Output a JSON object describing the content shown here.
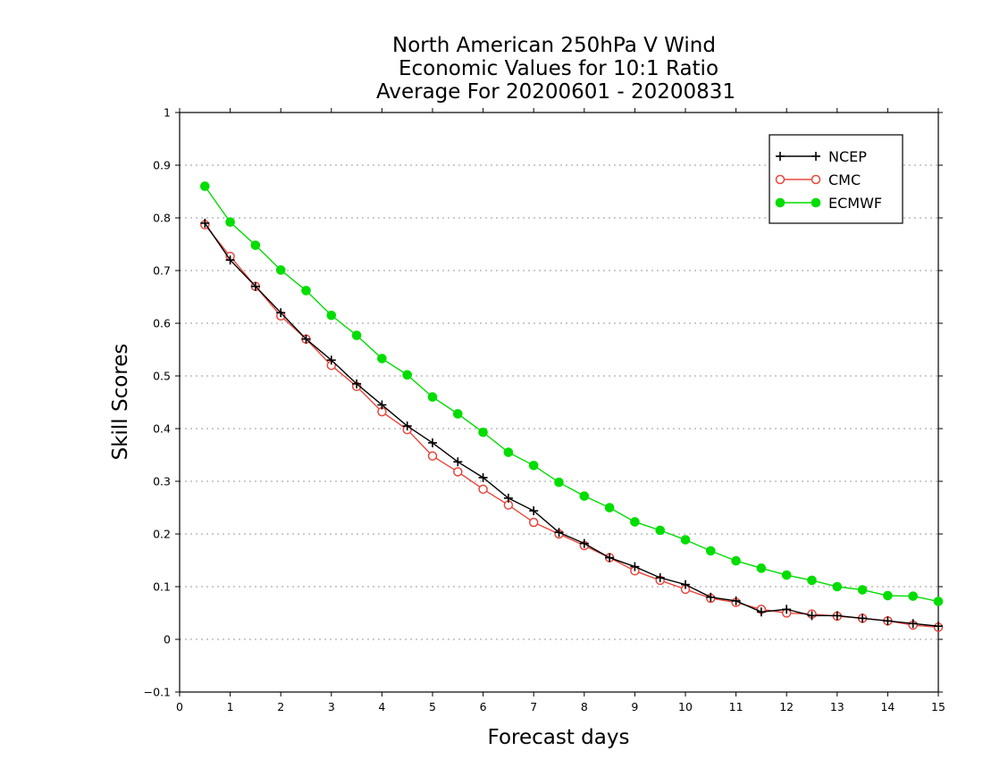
{
  "chart_data": {
    "type": "line",
    "title": [
      "North American 250hPa V Wind",
      "Economic Values for 10:1 Ratio",
      "Average For 20200601 - 20200831"
    ],
    "xlabel": "Forecast days",
    "ylabel": "Skill Scores",
    "xlim": [
      0,
      15
    ],
    "ylim": [
      -0.1,
      1
    ],
    "xticks": [
      0,
      1,
      2,
      3,
      4,
      5,
      6,
      7,
      8,
      9,
      10,
      11,
      12,
      13,
      14,
      15
    ],
    "yticks": [
      -0.1,
      0,
      0.1,
      0.2,
      0.3,
      0.4,
      0.5,
      0.6,
      0.7,
      0.8,
      0.9,
      1
    ],
    "ytick_labels": [
      "−0.1",
      "0",
      "0.1",
      "0.2",
      "0.3",
      "0.4",
      "0.5",
      "0.6",
      "0.7",
      "0.8",
      "0.9",
      "1"
    ],
    "grid": true,
    "legend_position": "top-right",
    "x": [
      0.5,
      1,
      1.5,
      2,
      2.5,
      3,
      3.5,
      4,
      4.5,
      5,
      5.5,
      6,
      6.5,
      7,
      7.5,
      8,
      8.5,
      9,
      9.5,
      10,
      10.5,
      11,
      11.5,
      12,
      12.5,
      13,
      13.5,
      14,
      14.5,
      15
    ],
    "series": [
      {
        "name": "NCEP",
        "color": "#000000",
        "marker": "plus",
        "values": [
          0.79,
          0.72,
          0.67,
          0.62,
          0.57,
          0.53,
          0.485,
          0.445,
          0.405,
          0.373,
          0.337,
          0.307,
          0.268,
          0.244,
          0.203,
          0.182,
          0.155,
          0.138,
          0.117,
          0.104,
          0.08,
          0.073,
          0.052,
          0.057,
          0.045,
          0.045,
          0.04,
          0.035,
          0.03,
          0.025
        ]
      },
      {
        "name": "CMC",
        "color": "#e8473d",
        "marker": "open-circle",
        "values": [
          0.787,
          0.727,
          0.67,
          0.614,
          0.57,
          0.52,
          0.48,
          0.432,
          0.398,
          0.348,
          0.318,
          0.285,
          0.255,
          0.222,
          0.2,
          0.178,
          0.155,
          0.13,
          0.112,
          0.095,
          0.078,
          0.07,
          0.057,
          0.05,
          0.048,
          0.044,
          0.04,
          0.035,
          0.027,
          0.023
        ]
      },
      {
        "name": "ECMWF",
        "color": "#00dd00",
        "marker": "filled-circle",
        "values": [
          0.86,
          0.792,
          0.748,
          0.701,
          0.662,
          0.615,
          0.577,
          0.533,
          0.502,
          0.46,
          0.428,
          0.393,
          0.355,
          0.33,
          0.298,
          0.272,
          0.25,
          0.223,
          0.207,
          0.189,
          0.168,
          0.149,
          0.135,
          0.122,
          0.112,
          0.1,
          0.094,
          0.083,
          0.082,
          0.072
        ]
      }
    ]
  }
}
